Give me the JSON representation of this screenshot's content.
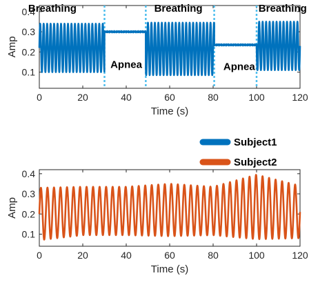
{
  "chart_data": [
    {
      "type": "line",
      "xlabel": "Time (s)",
      "ylabel": "Amp",
      "xlim": [
        0,
        120
      ],
      "ylim": [
        0.02,
        0.43
      ],
      "xticks": [
        0,
        20,
        40,
        60,
        80,
        100,
        120
      ],
      "yticks": [
        0.1,
        0.2,
        0.3,
        0.4
      ],
      "grid": false,
      "series": [
        {
          "name": "Subject1",
          "color": "#0072bd",
          "segments": [
            {
              "kind": "oscillation",
              "x": [
                0,
                30
              ],
              "center": 0.22,
              "amplitude": 0.12,
              "period_s": 1.6
            },
            {
              "kind": "flat",
              "x": [
                30,
                49
              ],
              "level": 0.3
            },
            {
              "kind": "oscillation",
              "x": [
                49,
                80.5
              ],
              "center": 0.215,
              "amplitude": 0.13,
              "period_s": 1.6
            },
            {
              "kind": "flat",
              "x": [
                80.5,
                100
              ],
              "level": 0.235
            },
            {
              "kind": "oscillation",
              "x": [
                100,
                120
              ],
              "center": 0.23,
              "amplitude": 0.12,
              "period_s": 1.6
            }
          ]
        }
      ],
      "vlines": {
        "x": [
          30,
          49,
          80.5,
          100
        ],
        "color": "#4dbeee",
        "style": "dotted"
      },
      "annotations": [
        {
          "text": "Breathing",
          "x": 6,
          "y": 0.4
        },
        {
          "text": "Apnea",
          "x": 40,
          "y": 0.12
        },
        {
          "text": "Breathing",
          "x": 64,
          "y": 0.4
        },
        {
          "text": "Apnea",
          "x": 92,
          "y": 0.11
        },
        {
          "text": "Breathing",
          "x": 112,
          "y": 0.4
        }
      ]
    },
    {
      "type": "line",
      "xlabel": "Time (s)",
      "ylabel": "Amp",
      "xlim": [
        0,
        120
      ],
      "ylim": [
        0.04,
        0.42
      ],
      "xticks": [
        0,
        20,
        40,
        60,
        80,
        100,
        120
      ],
      "yticks": [
        0.1,
        0.2,
        0.3,
        0.4
      ],
      "grid": false,
      "series": [
        {
          "name": "Subject2",
          "color": "#d95319",
          "segments": [
            {
              "kind": "oscillation",
              "x": [
                0,
                120
              ],
              "period_s": 3.0,
              "envelope_t": [
                0,
                20,
                40,
                60,
                80,
                100,
                120
              ],
              "envelope_center": [
                0.2,
                0.215,
                0.215,
                0.22,
                0.215,
                0.235,
                0.21
              ],
              "envelope_amplitude": [
                0.13,
                0.12,
                0.12,
                0.13,
                0.12,
                0.16,
                0.13
              ]
            }
          ]
        }
      ]
    }
  ],
  "legend": {
    "placement": "between-panels-right",
    "entries": [
      {
        "label": "Subject1",
        "color": "#0072bd"
      },
      {
        "label": "Subject2",
        "color": "#d95319"
      }
    ]
  }
}
